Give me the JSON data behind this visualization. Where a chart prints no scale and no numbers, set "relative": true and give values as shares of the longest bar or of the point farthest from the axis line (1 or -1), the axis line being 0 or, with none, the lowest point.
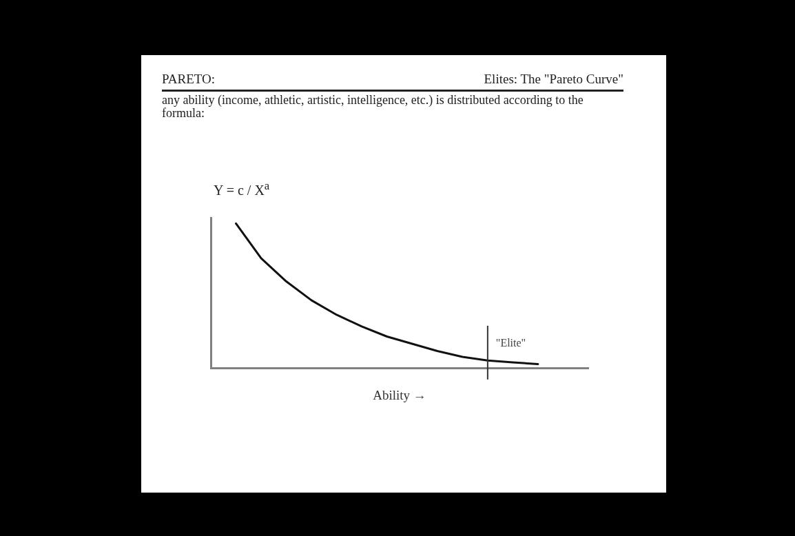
{
  "chart_data": {
    "type": "line",
    "title": "PARETO:",
    "subtitle": "Elites: The \"Pareto Curve\"",
    "xlabel": "Ability →",
    "relative": true,
    "annotations": [
      "any ability (income, athletic, artistic, intelligence, etc.) is distributed according to the formula:",
      "Y  =  c / X$^{a}$",
      "\"Elite\""
    ],
    "categories": [
      null,
      null,
      null,
      null,
      null,
      null,
      null,
      null,
      null,
      null,
      null,
      null,
      null,
      null,
      null,
      null
    ],
    "legend": false,
    "marker": "none",
    "line_style": "solid",
    "series": [
      {
        "color": "#111111",
        "values": [
          null,
          1,
          0.76,
          0.6,
          0.47,
          0.37,
          0.29,
          0.22,
          0.17,
          0.12,
          0.08,
          0.055,
          0.042,
          0.03,
          null,
          null
        ]
      }
    ]
  }
}
